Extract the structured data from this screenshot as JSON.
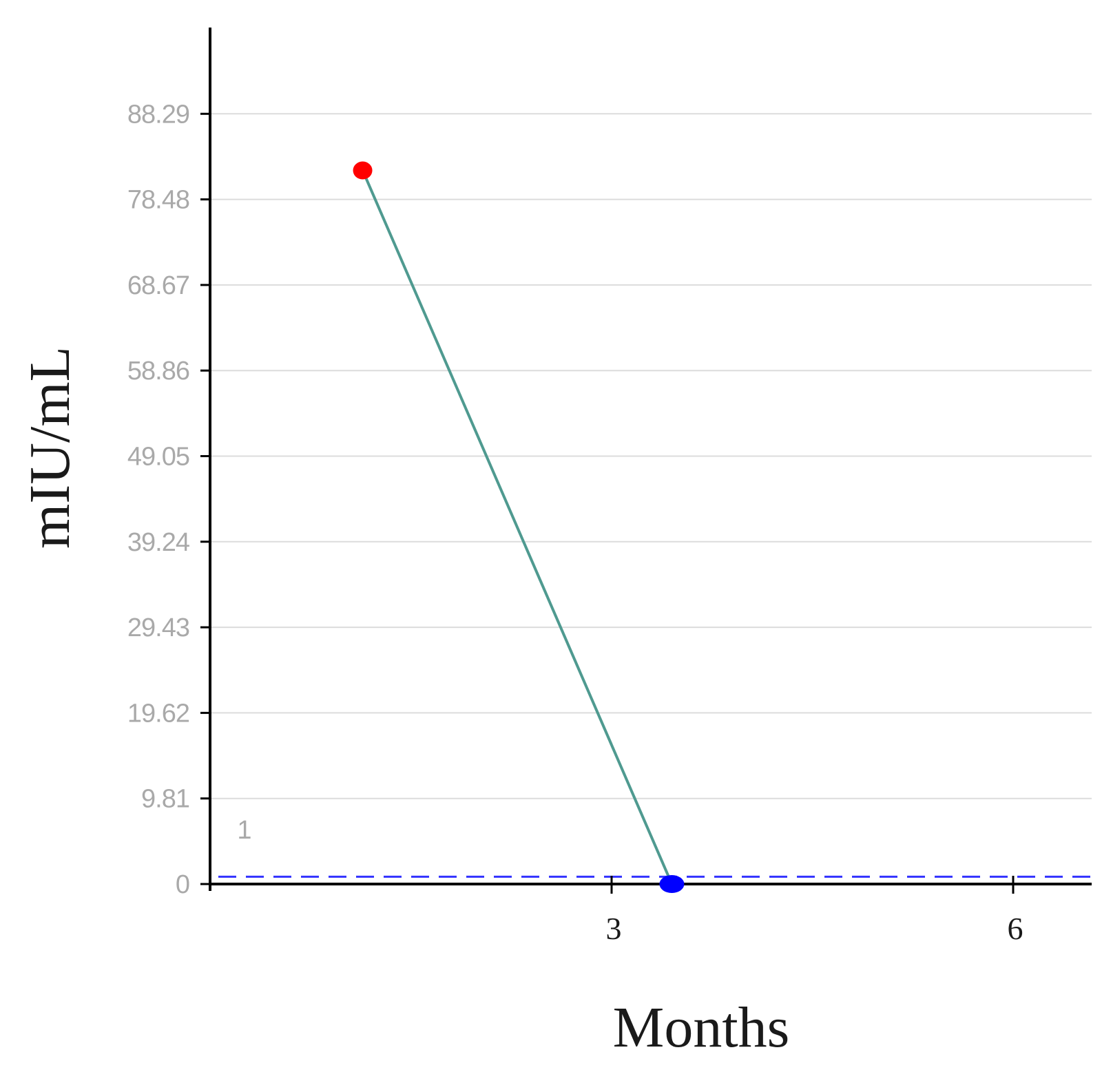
{
  "chart_data": {
    "type": "line",
    "title": "",
    "xlabel": "Months",
    "ylabel": "mIU/mL",
    "x_ticks": [
      "3",
      "6"
    ],
    "x_tick_values": [
      3,
      6
    ],
    "y_ticks": [
      "0",
      "9.81",
      "19.62",
      "29.43",
      "39.24",
      "49.05",
      "58.86",
      "68.67",
      "78.48",
      "88.29"
    ],
    "y_tick_values": [
      0,
      9.81,
      19.62,
      29.43,
      39.24,
      49.05,
      58.86,
      68.67,
      78.48,
      88.29
    ],
    "xlim": [
      0,
      6.6
    ],
    "ylim": [
      0,
      98
    ],
    "grid": true,
    "series": [
      {
        "x": [
          1.14,
          3.45
        ],
        "y": [
          81.8,
          0
        ],
        "line_color": "#4f9a90",
        "point_colors": [
          "#ff0000",
          "#0000ff"
        ]
      }
    ],
    "reference_line": {
      "y": 1,
      "label": "1",
      "color": "#3333ff",
      "style": "dashed"
    }
  }
}
